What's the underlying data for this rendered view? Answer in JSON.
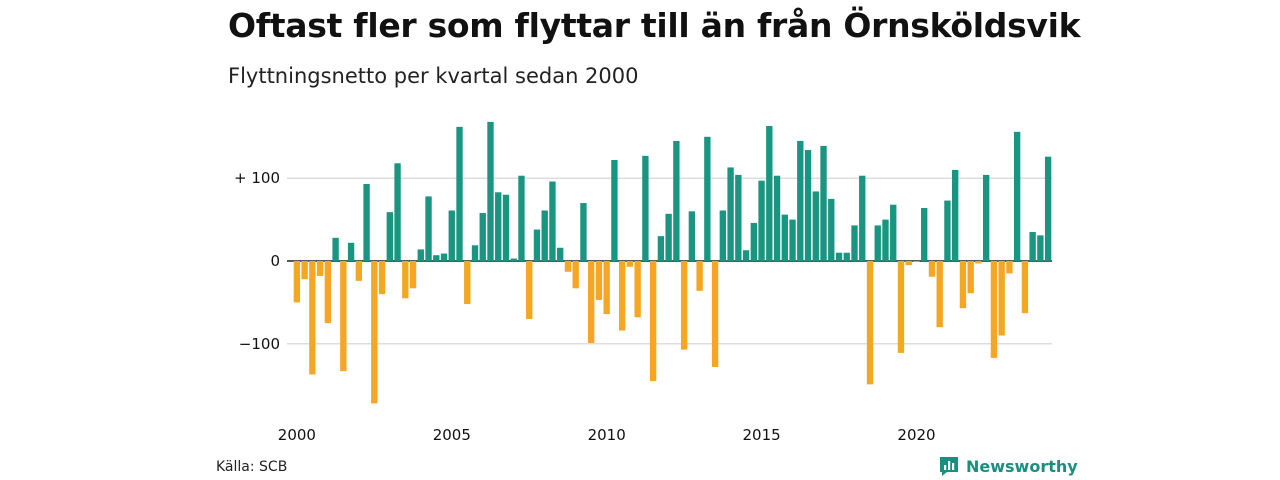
{
  "title": "Oftast fler som flyttar till än från Örnsköldsvik",
  "subtitle": "Flyttningsnetto per kvartal sedan 2000",
  "source": "Källa: SCB",
  "brand": {
    "name": "Newsworthy",
    "logo_icon": "newsworthy-logo-icon",
    "color": "#1a8f7f"
  },
  "colors": {
    "positive": "#1a9582",
    "negative": "#f5a623",
    "grid": "#dddddd",
    "zero": "#222222"
  },
  "chart_data": {
    "type": "bar",
    "y_tick_values": [
      -100,
      0,
      100
    ],
    "y_tick_labels": [
      "−100",
      "0",
      "+ 100"
    ],
    "x_tick_labels": [
      "2000",
      "2005",
      "2010",
      "2015",
      "2020"
    ],
    "ylim": [
      -180,
      170
    ],
    "grid": true,
    "start": "2000-Q1",
    "values": [
      -50,
      -22,
      -137,
      -18,
      -75,
      28,
      -133,
      22,
      -24,
      93,
      -172,
      -40,
      59,
      118,
      -45,
      -33,
      14,
      78,
      7,
      9,
      61,
      162,
      -52,
      19,
      58,
      168,
      83,
      80,
      3,
      103,
      -70,
      38,
      61,
      96,
      16,
      -13,
      -33,
      70,
      -99,
      -47,
      -64,
      122,
      -84,
      -7,
      -68,
      127,
      -145,
      30,
      57,
      145,
      -107,
      60,
      -36,
      150,
      -128,
      61,
      113,
      104,
      13,
      46,
      97,
      163,
      103,
      56,
      50,
      145,
      134,
      84,
      139,
      75,
      10,
      10,
      43,
      103,
      -149,
      43,
      50,
      68,
      -111,
      -5,
      -1,
      64,
      -19,
      -80,
      73,
      110,
      -57,
      -39,
      -3,
      104,
      -117,
      -90,
      -15,
      156,
      -63,
      35,
      31,
      126
    ]
  }
}
